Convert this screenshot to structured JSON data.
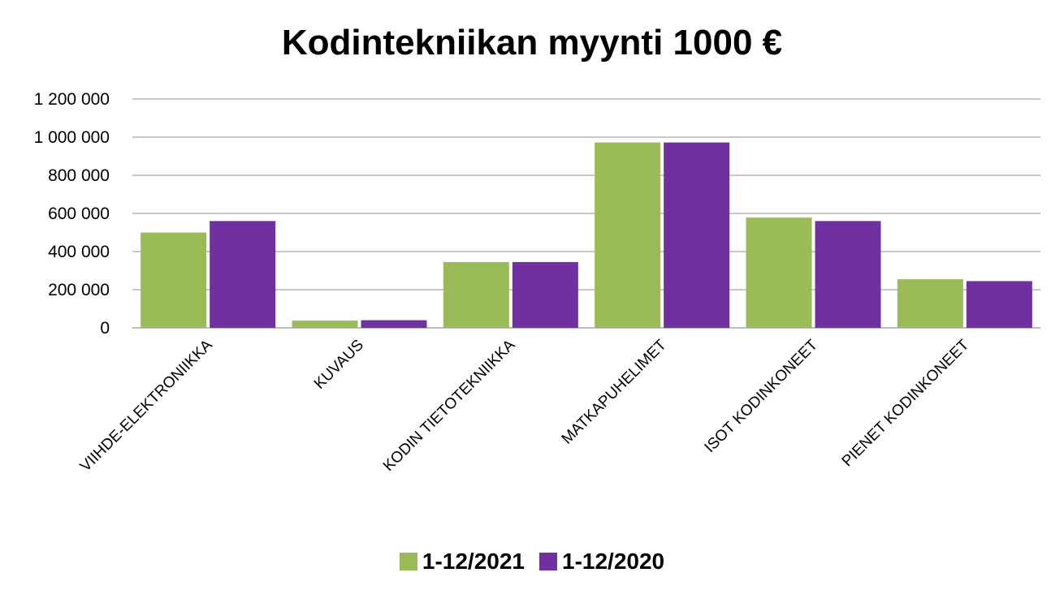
{
  "colors": {
    "series_2021": "#9bbb59",
    "series_2020": "#7030a0",
    "grid": "#a6a6a6",
    "axis": "#a6a6a6"
  },
  "chart_data": {
    "type": "bar",
    "title": "Kodintekniikan myynti 1000 €",
    "categories": [
      "VIIHDE-ELEKTRONIIKKA",
      "KUVAUS",
      "KODIN TIETOTEKNIIKKA",
      "MATKAPUHELIMET",
      "ISOT KODINKONEET",
      "PIENET KODINKONEET"
    ],
    "series": [
      {
        "name": "1-12/2021",
        "values": [
          500000,
          38000,
          345000,
          972000,
          578000,
          255000
        ]
      },
      {
        "name": "1-12/2020",
        "values": [
          560000,
          40000,
          345000,
          972000,
          560000,
          245000
        ]
      }
    ],
    "ylim": [
      0,
      1200000
    ],
    "yticks": [
      0,
      200000,
      400000,
      600000,
      800000,
      1000000,
      1200000
    ],
    "ytick_labels": [
      "0",
      "200 000",
      "400 000",
      "600 000",
      "800 000",
      "1 000 000",
      "1 200 000"
    ],
    "grid": true,
    "legend_position": "bottom"
  }
}
